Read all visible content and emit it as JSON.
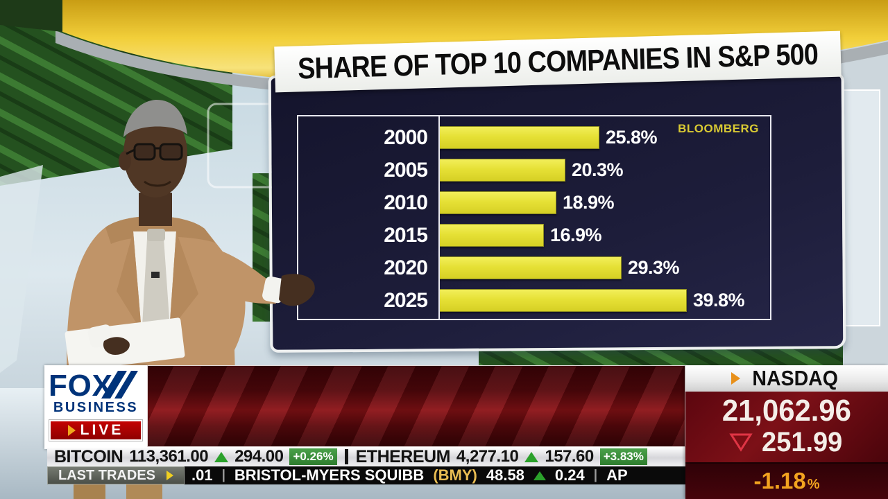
{
  "chart_data": {
    "type": "bar",
    "orientation": "horizontal",
    "title": "SHARE OF TOP 10 COMPANIES IN S&P 500",
    "source": "BLOOMBERG",
    "categories": [
      "2000",
      "2005",
      "2010",
      "2015",
      "2020",
      "2025"
    ],
    "values": [
      25.8,
      20.3,
      18.9,
      16.9,
      29.3,
      39.8
    ],
    "value_labels": [
      "25.8%",
      "20.3%",
      "18.9%",
      "16.9%",
      "29.3%",
      "39.8%"
    ],
    "xlim": [
      0,
      44
    ],
    "grid": false,
    "legend_position": "top-right",
    "bar_color": "#e6e136",
    "label_color": "#ffffff",
    "background_color": "#1a1a36"
  },
  "branding": {
    "fox": "FOX",
    "business": "BUSINESS",
    "live_label": "LIVE"
  },
  "nasdaq_panel": {
    "title": "NASDAQ",
    "index_value": "21,062.96",
    "change_value": "251.99",
    "change_direction": "down",
    "percent_change": "-1.18",
    "percent_sign": "%",
    "value_color": "#f4eee8",
    "percent_color": "#f2a31f"
  },
  "crypto_ticker": {
    "items": [
      {
        "name": "BITCOIN",
        "price": "113,361.00",
        "change": "294.00",
        "direction": "up",
        "percent_badge": "+0.26%"
      },
      {
        "name": "ETHEREUM",
        "price": "4,277.10",
        "change": "157.60",
        "direction": "up",
        "percent_badge": "+3.83%"
      }
    ],
    "up_color": "#2ba12b",
    "badge_color": "#2e7d2e"
  },
  "last_trades": {
    "label": "LAST TRADES",
    "partial_prefix": ".01",
    "separator": "|",
    "company": "BRISTOL-MYERS SQUIBB",
    "ticker_symbol": "(BMY)",
    "price": "48.58",
    "change": "0.24",
    "direction": "up",
    "partial_suffix": "AP"
  }
}
